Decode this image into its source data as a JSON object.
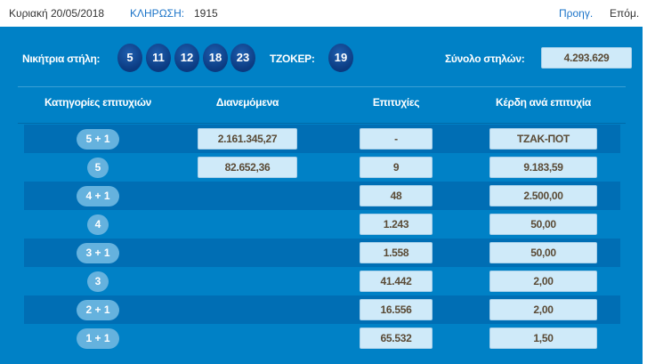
{
  "header": {
    "date": "Κυριακή 20/05/2018",
    "draw_label": "ΚΛΗΡΩΣΗ:",
    "draw_number": "1915",
    "prev": "Προηγ.",
    "next": "Επόμ."
  },
  "winning": {
    "label": "Νικήτρια στήλη:",
    "numbers": [
      "5",
      "11",
      "12",
      "18",
      "23"
    ],
    "joker_label": "ΤΖΟΚΕΡ:",
    "joker": "19",
    "total_label": "Σύνολο στηλών:",
    "total": "4.293.629"
  },
  "table": {
    "headers": [
      "Κατηγορίες επιτυχιών",
      "Διανεμόμενα",
      "Επιτυχίες",
      "Κέρδη ανά επιτυχία"
    ],
    "rows": [
      {
        "category": "5 + 1",
        "distributed": "2.161.345,27",
        "wins": "-",
        "prize": "ΤΖΑΚ-ΠΟΤ"
      },
      {
        "category": "5",
        "distributed": "82.652,36",
        "wins": "9",
        "prize": "9.183,59"
      },
      {
        "category": "4 + 1",
        "distributed": "",
        "wins": "48",
        "prize": "2.500,00"
      },
      {
        "category": "4",
        "distributed": "",
        "wins": "1.243",
        "prize": "50,00"
      },
      {
        "category": "3 + 1",
        "distributed": "",
        "wins": "1.558",
        "prize": "50,00"
      },
      {
        "category": "3",
        "distributed": "",
        "wins": "41.442",
        "prize": "2,00"
      },
      {
        "category": "2 + 1",
        "distributed": "",
        "wins": "16.556",
        "prize": "2,00"
      },
      {
        "category": "1 + 1",
        "distributed": "",
        "wins": "65.532",
        "prize": "1,50"
      }
    ]
  },
  "colors": {
    "panel": "#0081c6",
    "stripe": "#006eb4",
    "link": "#1a73c8",
    "ball": "#0b3a80"
  }
}
